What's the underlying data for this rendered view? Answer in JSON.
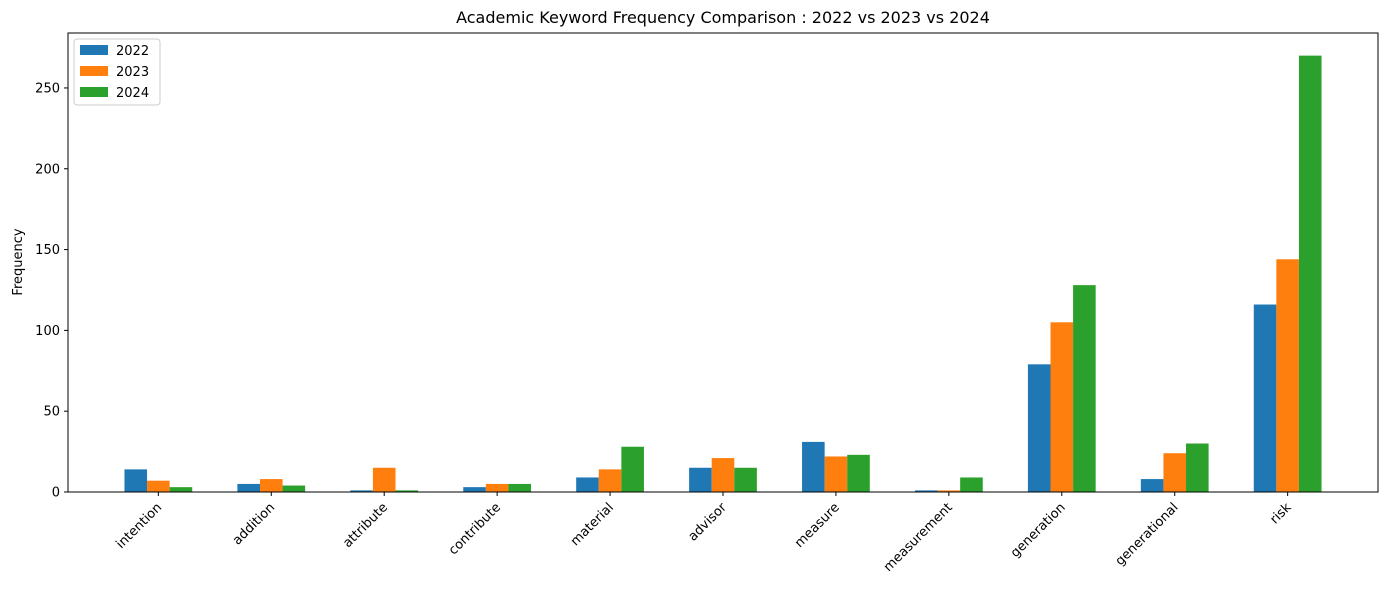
{
  "chart_data": {
    "type": "bar",
    "title": "Academic Keyword Frequency Comparison : 2022 vs 2023 vs 2024",
    "xlabel": "",
    "ylabel": "Frequency",
    "ylim": [
      0,
      284
    ],
    "yticks": [
      0,
      50,
      100,
      150,
      200,
      250
    ],
    "grid": false,
    "legend_position": "top-left",
    "categories": [
      "intention",
      "addition",
      "attribute",
      "contribute",
      "material",
      "advisor",
      "measure",
      "measurement",
      "generation",
      "generational",
      "risk"
    ],
    "series": [
      {
        "name": "2022",
        "color": "#1f77b4",
        "values": [
          14,
          5,
          1,
          3,
          9,
          15,
          31,
          1,
          79,
          8,
          116
        ]
      },
      {
        "name": "2023",
        "color": "#ff7f0e",
        "values": [
          7,
          8,
          15,
          5,
          14,
          21,
          22,
          1,
          105,
          24,
          144
        ]
      },
      {
        "name": "2024",
        "color": "#2ca02c",
        "values": [
          3,
          4,
          1,
          5,
          28,
          15,
          23,
          9,
          128,
          30,
          270
        ]
      }
    ]
  }
}
